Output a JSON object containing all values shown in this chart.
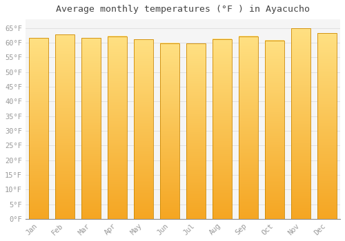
{
  "title": "Average monthly temperatures (°F ) in Ayacucho",
  "categories": [
    "Jan",
    "Feb",
    "Mar",
    "Apr",
    "May",
    "Jun",
    "Jul",
    "Aug",
    "Sep",
    "Oct",
    "Nov",
    "Dec"
  ],
  "values": [
    61.7,
    62.8,
    61.7,
    62.2,
    61.2,
    59.9,
    59.7,
    61.3,
    62.2,
    60.8,
    64.9,
    63.3
  ],
  "bar_color_bottom": "#F5A623",
  "bar_color_top": "#FFE082",
  "bar_edge_color": "#CC8800",
  "background_color": "#FFFFFF",
  "plot_bg_color": "#F5F5F5",
  "grid_color": "#DDDDDD",
  "tick_label_color": "#999999",
  "title_color": "#444444",
  "ylim": [
    0,
    68
  ],
  "yticks": [
    0,
    5,
    10,
    15,
    20,
    25,
    30,
    35,
    40,
    45,
    50,
    55,
    60,
    65
  ],
  "ytick_labels": [
    "0°F",
    "5°F",
    "10°F",
    "15°F",
    "20°F",
    "25°F",
    "30°F",
    "35°F",
    "40°F",
    "45°F",
    "50°F",
    "55°F",
    "60°F",
    "65°F"
  ],
  "title_fontsize": 9.5,
  "tick_fontsize": 7.5,
  "font_family": "monospace"
}
